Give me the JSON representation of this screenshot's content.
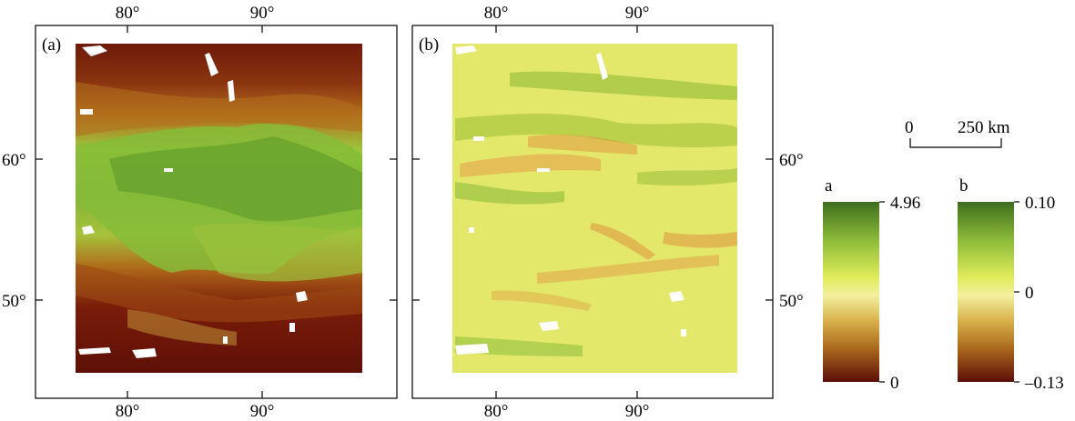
{
  "panels": [
    {
      "label": "(a)",
      "top_ticks": [
        "80°",
        "90°"
      ],
      "bottom_ticks": [
        "80°",
        "90°"
      ],
      "left_ticks": [
        "60°",
        "50°"
      ],
      "right_ticks": []
    },
    {
      "label": "(b)",
      "top_ticks": [
        "80°",
        "90°"
      ],
      "bottom_ticks": [
        "80°",
        "90°"
      ],
      "left_ticks": [],
      "right_ticks": [
        "60°",
        "50°"
      ]
    }
  ],
  "scale_bar": {
    "start": "0",
    "end": "250 km"
  },
  "colorbars": [
    {
      "label": "a",
      "max": "4.96",
      "min": "0",
      "colors": [
        "#3e6e1e",
        "#8fbd3a",
        "#e0ec5a",
        "#f3f0a0",
        "#d9b24a",
        "#a8651c",
        "#5c0e08"
      ]
    },
    {
      "label": "b",
      "max": "0.10",
      "mid": "0",
      "min": "–0.13",
      "colors": [
        "#3e6e1e",
        "#8fbd3a",
        "#e0ec5a",
        "#f3f0a0",
        "#d9b24a",
        "#a8651c",
        "#5c0e08"
      ]
    }
  ],
  "map_colors": {
    "dark_red": "#6a1208",
    "brown": "#a04a14",
    "ochre": "#c9951e",
    "yellow_green": "#c8d83a",
    "light_green": "#8cc13a",
    "green": "#5d9a2a",
    "pale_yellow": "#e5ea6a",
    "orange": "#e08a3a"
  }
}
